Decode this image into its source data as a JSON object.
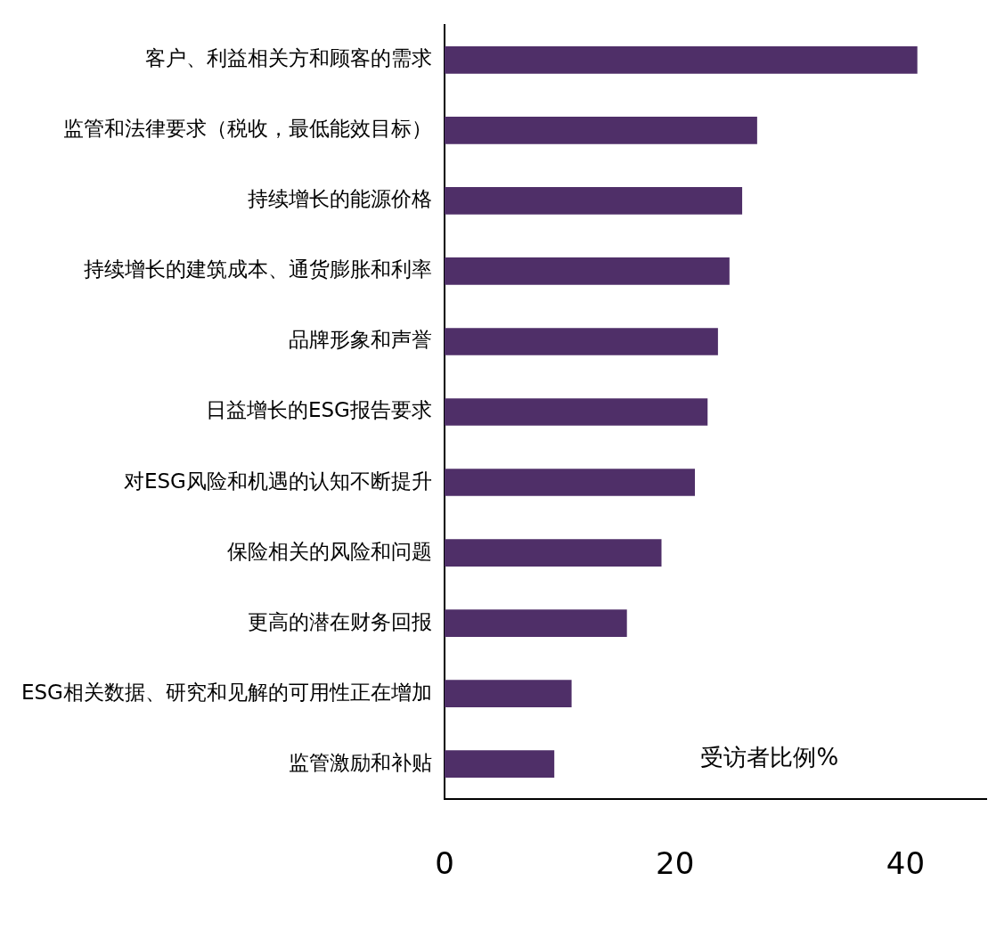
{
  "chart_data": {
    "type": "bar",
    "orientation": "horizontal",
    "xlabel": "受访者比例%",
    "categories": [
      "客户、利益相关方和顾客的需求",
      "监管和法律要求（税收，最低能效目标）",
      "持续增长的能源价格",
      "持续增长的建筑成本、通货膨胀和利率",
      "品牌形象和声誉",
      "日益增长的ESG报告要求",
      "对ESG风险和机遇的认知不断提升",
      "保险相关的风险和问题",
      "更高的潜在财务回报",
      "ESG相关数据、研究和见解的可用性正在增加",
      "监管激励和补贴"
    ],
    "values": [
      41,
      27.1,
      25.8,
      24.7,
      23.7,
      22.8,
      21.7,
      18.8,
      15.8,
      11,
      9.5
    ],
    "color": "#4f2f68",
    "xlim": [
      0,
      47
    ],
    "xticks": [
      0,
      20,
      40
    ],
    "grid": false,
    "legend": false
  }
}
